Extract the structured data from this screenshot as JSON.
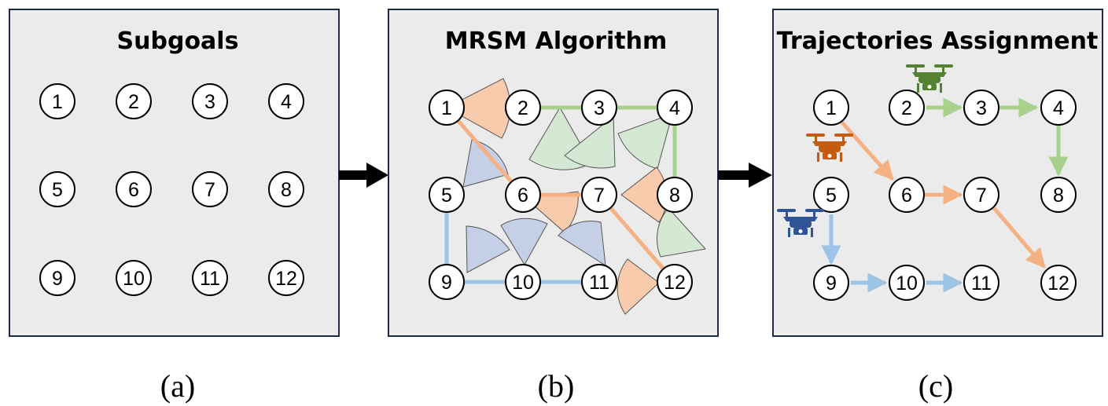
{
  "panels": [
    {
      "id": "a",
      "title": "Subgoals",
      "caption": "(a)"
    },
    {
      "id": "b",
      "title": "MRSM Algorithm",
      "caption": "(b)"
    },
    {
      "id": "c",
      "title": "Trajectories Assignment",
      "caption": "(c)"
    }
  ],
  "nodes": [
    "1",
    "2",
    "3",
    "4",
    "5",
    "6",
    "7",
    "8",
    "9",
    "10",
    "11",
    "12"
  ],
  "colors": {
    "panel_fill": "#ebebeb",
    "panel_border": "#1f2a44",
    "orange_line": "#f4b183",
    "green_line": "#a9d18e",
    "blue_line": "#9dc3e6",
    "orange_sector": "#f8cbad",
    "green_sector": "#d5e8d4",
    "blue_sector": "#c5cfe6",
    "drone_orange": "#c55a11",
    "drone_green": "#548235",
    "drone_blue": "#2f5597"
  },
  "trajectories": [
    {
      "color": "orange",
      "nodes": [
        "1",
        "6",
        "7",
        "12"
      ]
    },
    {
      "color": "green",
      "nodes": [
        "2",
        "3",
        "4",
        "8"
      ]
    },
    {
      "color": "blue",
      "nodes": [
        "5",
        "9",
        "10",
        "11"
      ]
    }
  ],
  "icons": [
    "drone-icon",
    "arrow-right-icon"
  ]
}
